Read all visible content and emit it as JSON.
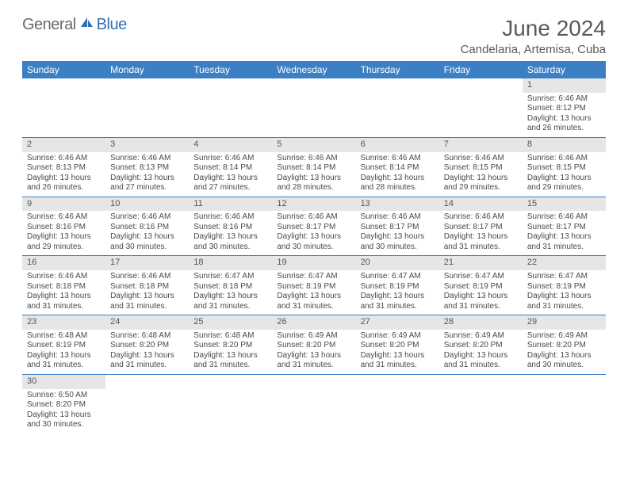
{
  "logo": {
    "text1": "General",
    "text2": "Blue"
  },
  "title": "June 2024",
  "location": "Candelaria, Artemisa, Cuba",
  "colors": {
    "header_bg": "#3b7fc4",
    "header_fg": "#ffffff",
    "daynum_bg": "#e6e6e6",
    "border": "#3b7fc4",
    "logo_gray": "#6a6a6a",
    "logo_blue": "#2d70b6"
  },
  "day_headers": [
    "Sunday",
    "Monday",
    "Tuesday",
    "Wednesday",
    "Thursday",
    "Friday",
    "Saturday"
  ],
  "weeks": [
    {
      "nums": [
        "",
        "",
        "",
        "",
        "",
        "",
        "1"
      ],
      "cells": [
        null,
        null,
        null,
        null,
        null,
        null,
        {
          "sunrise": "6:46 AM",
          "sunset": "8:12 PM",
          "dayl_h": "13",
          "dayl_m": "26"
        }
      ]
    },
    {
      "nums": [
        "2",
        "3",
        "4",
        "5",
        "6",
        "7",
        "8"
      ],
      "cells": [
        {
          "sunrise": "6:46 AM",
          "sunset": "8:13 PM",
          "dayl_h": "13",
          "dayl_m": "26"
        },
        {
          "sunrise": "6:46 AM",
          "sunset": "8:13 PM",
          "dayl_h": "13",
          "dayl_m": "27"
        },
        {
          "sunrise": "6:46 AM",
          "sunset": "8:14 PM",
          "dayl_h": "13",
          "dayl_m": "27"
        },
        {
          "sunrise": "6:46 AM",
          "sunset": "8:14 PM",
          "dayl_h": "13",
          "dayl_m": "28"
        },
        {
          "sunrise": "6:46 AM",
          "sunset": "8:14 PM",
          "dayl_h": "13",
          "dayl_m": "28"
        },
        {
          "sunrise": "6:46 AM",
          "sunset": "8:15 PM",
          "dayl_h": "13",
          "dayl_m": "29"
        },
        {
          "sunrise": "6:46 AM",
          "sunset": "8:15 PM",
          "dayl_h": "13",
          "dayl_m": "29"
        }
      ]
    },
    {
      "nums": [
        "9",
        "10",
        "11",
        "12",
        "13",
        "14",
        "15"
      ],
      "cells": [
        {
          "sunrise": "6:46 AM",
          "sunset": "8:16 PM",
          "dayl_h": "13",
          "dayl_m": "29"
        },
        {
          "sunrise": "6:46 AM",
          "sunset": "8:16 PM",
          "dayl_h": "13",
          "dayl_m": "30"
        },
        {
          "sunrise": "6:46 AM",
          "sunset": "8:16 PM",
          "dayl_h": "13",
          "dayl_m": "30"
        },
        {
          "sunrise": "6:46 AM",
          "sunset": "8:17 PM",
          "dayl_h": "13",
          "dayl_m": "30"
        },
        {
          "sunrise": "6:46 AM",
          "sunset": "8:17 PM",
          "dayl_h": "13",
          "dayl_m": "30"
        },
        {
          "sunrise": "6:46 AM",
          "sunset": "8:17 PM",
          "dayl_h": "13",
          "dayl_m": "31"
        },
        {
          "sunrise": "6:46 AM",
          "sunset": "8:17 PM",
          "dayl_h": "13",
          "dayl_m": "31"
        }
      ]
    },
    {
      "nums": [
        "16",
        "17",
        "18",
        "19",
        "20",
        "21",
        "22"
      ],
      "cells": [
        {
          "sunrise": "6:46 AM",
          "sunset": "8:18 PM",
          "dayl_h": "13",
          "dayl_m": "31"
        },
        {
          "sunrise": "6:46 AM",
          "sunset": "8:18 PM",
          "dayl_h": "13",
          "dayl_m": "31"
        },
        {
          "sunrise": "6:47 AM",
          "sunset": "8:18 PM",
          "dayl_h": "13",
          "dayl_m": "31"
        },
        {
          "sunrise": "6:47 AM",
          "sunset": "8:19 PM",
          "dayl_h": "13",
          "dayl_m": "31"
        },
        {
          "sunrise": "6:47 AM",
          "sunset": "8:19 PM",
          "dayl_h": "13",
          "dayl_m": "31"
        },
        {
          "sunrise": "6:47 AM",
          "sunset": "8:19 PM",
          "dayl_h": "13",
          "dayl_m": "31"
        },
        {
          "sunrise": "6:47 AM",
          "sunset": "8:19 PM",
          "dayl_h": "13",
          "dayl_m": "31"
        }
      ]
    },
    {
      "nums": [
        "23",
        "24",
        "25",
        "26",
        "27",
        "28",
        "29"
      ],
      "cells": [
        {
          "sunrise": "6:48 AM",
          "sunset": "8:19 PM",
          "dayl_h": "13",
          "dayl_m": "31"
        },
        {
          "sunrise": "6:48 AM",
          "sunset": "8:20 PM",
          "dayl_h": "13",
          "dayl_m": "31"
        },
        {
          "sunrise": "6:48 AM",
          "sunset": "8:20 PM",
          "dayl_h": "13",
          "dayl_m": "31"
        },
        {
          "sunrise": "6:49 AM",
          "sunset": "8:20 PM",
          "dayl_h": "13",
          "dayl_m": "31"
        },
        {
          "sunrise": "6:49 AM",
          "sunset": "8:20 PM",
          "dayl_h": "13",
          "dayl_m": "31"
        },
        {
          "sunrise": "6:49 AM",
          "sunset": "8:20 PM",
          "dayl_h": "13",
          "dayl_m": "31"
        },
        {
          "sunrise": "6:49 AM",
          "sunset": "8:20 PM",
          "dayl_h": "13",
          "dayl_m": "30"
        }
      ]
    },
    {
      "nums": [
        "30",
        "",
        "",
        "",
        "",
        "",
        ""
      ],
      "cells": [
        {
          "sunrise": "6:50 AM",
          "sunset": "8:20 PM",
          "dayl_h": "13",
          "dayl_m": "30"
        },
        null,
        null,
        null,
        null,
        null,
        null
      ]
    }
  ],
  "labels": {
    "sunrise_prefix": "Sunrise: ",
    "sunset_prefix": "Sunset: ",
    "daylight_prefix": "Daylight: ",
    "hours_word": " hours",
    "and_word": "and ",
    "minutes_word": " minutes."
  }
}
